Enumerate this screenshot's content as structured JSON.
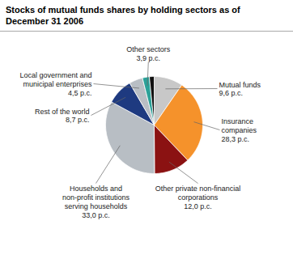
{
  "chart_data": {
    "type": "pie",
    "title": "Stocks of mutual funds shares by holding sectors as of\nDecember 31 2006",
    "values": [
      9.6,
      28.3,
      12.0,
      33.0,
      8.7,
      4.5,
      2.3,
      1.6
    ],
    "colors": [
      "#c8c8c8",
      "#f5922b",
      "#8b1212",
      "#b8bec4",
      "#1e3a80",
      "#b8bec4",
      "#2aa198",
      "#111111"
    ],
    "annotations": [
      "Mutual funds\n9,6 p.c.",
      "Insurance\ncompanies\n28,3 p.c.",
      "Other private non-financial\ncorporations\n12,0 p.c.",
      "Households and\nnon-profit institutions\nserving households\n33,0 p.c.",
      "Rest of the world\n8,7 p.c.",
      "Local government and\nmunicipal enterprises\n4,5 p.c.",
      "Other sectors\n3,9 p.c."
    ]
  }
}
